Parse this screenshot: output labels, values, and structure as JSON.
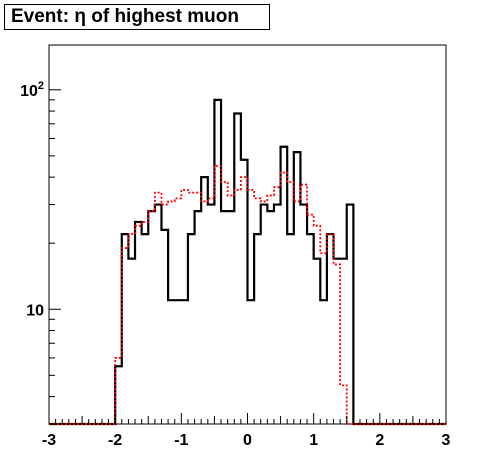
{
  "chart_data": {
    "type": "line",
    "title": "Event: η of highest muon",
    "xlabel": "",
    "ylabel": "",
    "xlim": [
      -3,
      3
    ],
    "ylim": [
      3.0,
      160
    ],
    "yscale": "log",
    "x_ticks": [
      "-3",
      "-2",
      "-1",
      "0",
      "1",
      "2",
      "3"
    ],
    "y_ticks": [
      {
        "value": 10,
        "base": "10",
        "exp": ""
      },
      {
        "value": 100,
        "base": "10",
        "exp": "2"
      }
    ],
    "grid": false,
    "legend": "none",
    "bin_width": 0.1,
    "series": [
      {
        "style": "solid",
        "color": "#000000",
        "x_start": -3.0,
        "values": [
          3,
          3,
          3,
          3,
          3,
          3,
          3,
          3,
          3,
          3,
          5.5,
          22,
          17,
          25,
          22,
          28,
          30,
          23,
          11,
          11,
          11,
          22,
          28,
          40,
          30,
          90,
          28,
          28,
          78,
          48,
          11,
          22,
          30,
          28,
          30,
          55,
          22,
          52,
          30,
          22,
          17,
          11,
          22,
          17,
          17,
          30,
          3,
          3,
          3,
          3,
          3,
          3,
          3,
          3,
          3,
          3,
          3,
          3,
          3,
          3
        ]
      },
      {
        "style": "dotted",
        "color": "#ff0000",
        "x_start": -3.0,
        "values": [
          3,
          3,
          3,
          3,
          3,
          3,
          3,
          3,
          3,
          3,
          6,
          19,
          22,
          24,
          25,
          28,
          34,
          30,
          31,
          32,
          35,
          34,
          34,
          31,
          32,
          45,
          38,
          33,
          35,
          40,
          35,
          32,
          31,
          33,
          36,
          42,
          38,
          31,
          37,
          27,
          24,
          18,
          22,
          16,
          4.5,
          3,
          3,
          3,
          3,
          3,
          3,
          3,
          3,
          3,
          3,
          3,
          3,
          3,
          3,
          3
        ]
      }
    ]
  }
}
